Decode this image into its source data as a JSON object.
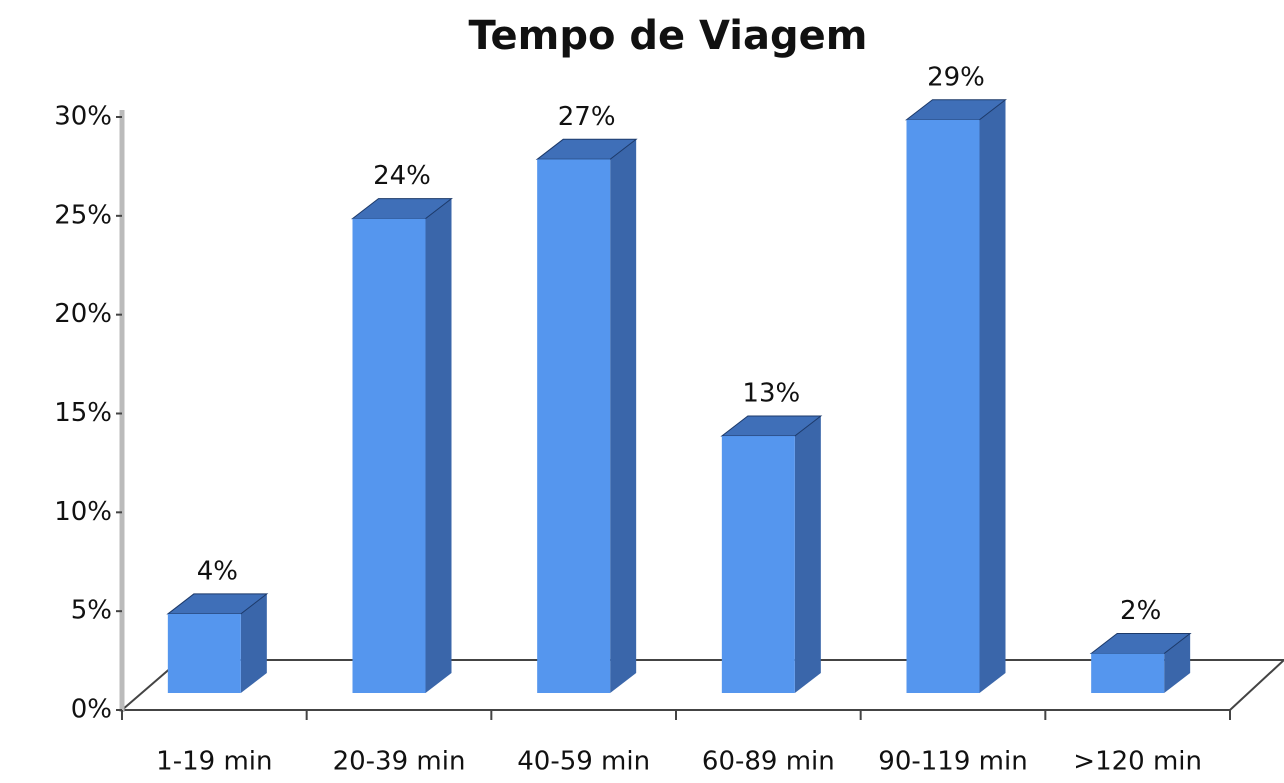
{
  "chart_data": {
    "type": "bar3d",
    "title": "Tempo de Viagem",
    "categories": [
      "1-19 min",
      "20-39 min",
      "40-59 min",
      "60-89 min",
      "90-119 min",
      ">120 min"
    ],
    "values": [
      4,
      24,
      27,
      13,
      29,
      2
    ],
    "value_labels": [
      "4%",
      "24%",
      "27%",
      "13%",
      "29%",
      "2%"
    ],
    "color": "#5596ee",
    "ylim": [
      0,
      30
    ],
    "yticks": [
      {
        "value": 0,
        "label": "0%"
      },
      {
        "value": 5,
        "label": "5%"
      },
      {
        "value": 10,
        "label": "10%"
      },
      {
        "value": 15,
        "label": "15%"
      },
      {
        "value": 20,
        "label": "20%"
      },
      {
        "value": 25,
        "label": "25%"
      },
      {
        "value": 30,
        "label": "30%"
      }
    ],
    "grid": false
  }
}
